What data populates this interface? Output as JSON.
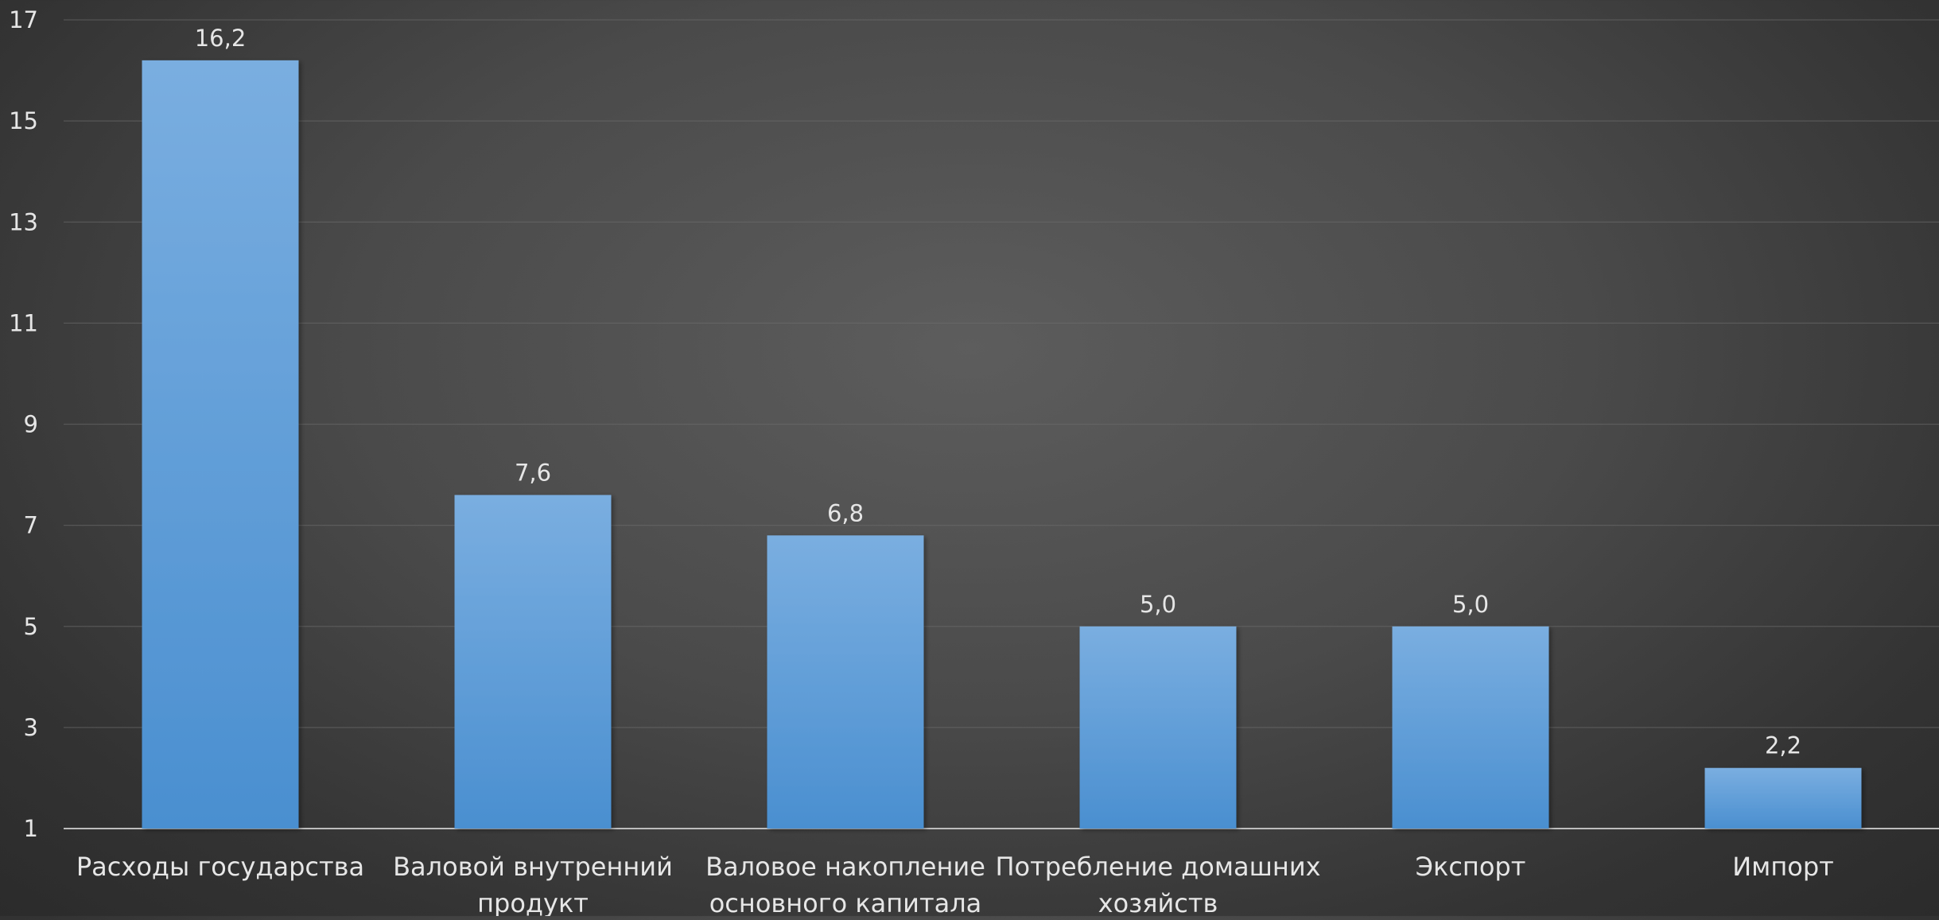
{
  "chart_data": {
    "type": "bar",
    "categories": [
      [
        "Расходы государства"
      ],
      [
        "Валовой внутренний",
        "продукт"
      ],
      [
        "Валовое накопление",
        "основного капитала"
      ],
      [
        "Потребление домашних",
        "хозяйств"
      ],
      [
        "Экспорт"
      ],
      [
        "Импорт"
      ]
    ],
    "values": [
      16.2,
      7.6,
      6.8,
      5.0,
      5.0,
      2.2
    ],
    "data_labels": [
      "16,2",
      "7,6",
      "6,8",
      "5,0",
      "5,0",
      "2,2"
    ],
    "y_ticks": [
      1,
      3,
      5,
      7,
      9,
      11,
      13,
      15,
      17
    ],
    "ylim": [
      1,
      17
    ],
    "grid": true,
    "bar_color_top": "#7aaee0",
    "bar_color_bottom": "#4a8fd0"
  }
}
